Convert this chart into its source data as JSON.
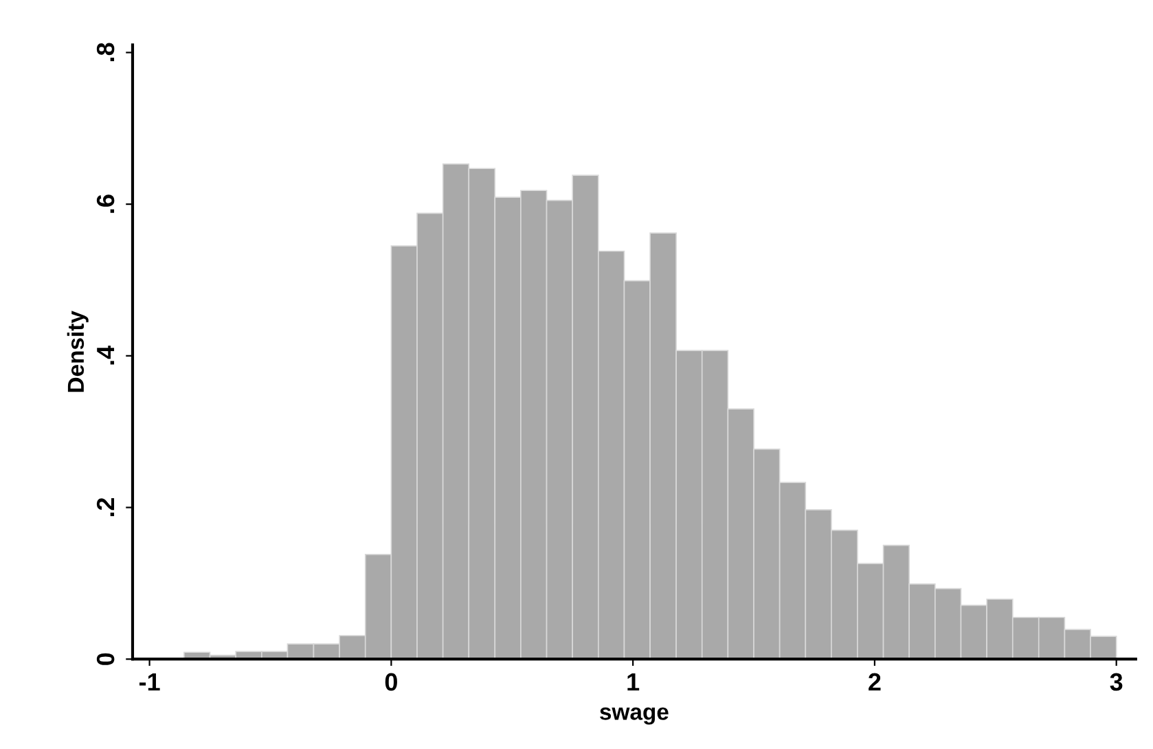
{
  "chart_data": {
    "type": "histogram",
    "xlabel": "swage",
    "ylabel": "Density",
    "bins": [
      -0.857,
      -0.75,
      -0.643,
      -0.536,
      -0.429,
      -0.321,
      -0.214,
      -0.107,
      0.0,
      0.107,
      0.214,
      0.321,
      0.429,
      0.536,
      0.643,
      0.75,
      0.857,
      0.964,
      1.071,
      1.179,
      1.286,
      1.393,
      1.5,
      1.607,
      1.714,
      1.821,
      1.929,
      2.036,
      2.143,
      2.25,
      2.357,
      2.464,
      2.571,
      2.679,
      2.786,
      2.893,
      3.0
    ],
    "values": [
      0.009,
      0.005,
      0.01,
      0.01,
      0.02,
      0.02,
      0.031,
      0.138,
      0.545,
      0.588,
      0.653,
      0.647,
      0.609,
      0.618,
      0.605,
      0.638,
      0.538,
      0.499,
      0.562,
      0.407,
      0.407,
      0.33,
      0.277,
      0.233,
      0.197,
      0.17,
      0.126,
      0.15,
      0.099,
      0.093,
      0.071,
      0.079,
      0.055,
      0.055,
      0.039,
      0.03
    ],
    "color": "#a9a9a9",
    "xlim": [
      -1.07,
      3.08
    ],
    "ylim": [
      0,
      0.81
    ],
    "xticks": [
      -1,
      0,
      1,
      2,
      3
    ],
    "yticks": [
      0,
      {
        "value": 0.2,
        "label": ".2"
      },
      {
        "value": 0.4,
        "label": ".4"
      },
      {
        "value": 0.6,
        "label": ".6"
      },
      {
        "value": 0.8,
        "label": ".8"
      }
    ],
    "grid": false,
    "legend": false
  }
}
